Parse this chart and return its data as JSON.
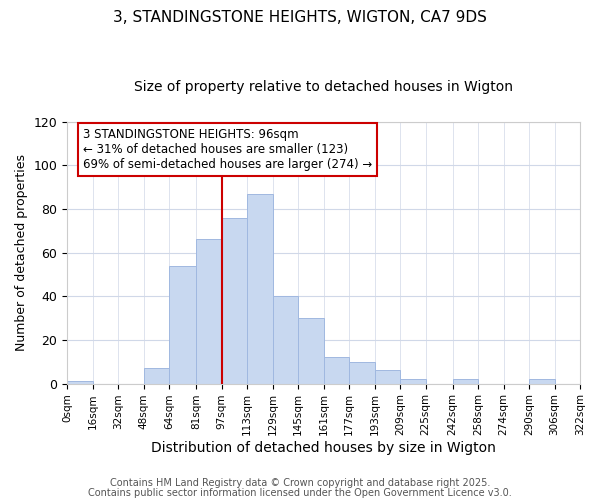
{
  "title": "3, STANDINGSTONE HEIGHTS, WIGTON, CA7 9DS",
  "subtitle": "Size of property relative to detached houses in Wigton",
  "xlabel": "Distribution of detached houses by size in Wigton",
  "ylabel": "Number of detached properties",
  "bin_edges": [
    0,
    16,
    32,
    48,
    64,
    81,
    97,
    113,
    129,
    145,
    161,
    177,
    193,
    209,
    225,
    242,
    258,
    274,
    290,
    306,
    322
  ],
  "bin_labels": [
    "0sqm",
    "16sqm",
    "32sqm",
    "48sqm",
    "64sqm",
    "81sqm",
    "97sqm",
    "113sqm",
    "129sqm",
    "145sqm",
    "161sqm",
    "177sqm",
    "193sqm",
    "209sqm",
    "225sqm",
    "242sqm",
    "258sqm",
    "274sqm",
    "290sqm",
    "306sqm",
    "322sqm"
  ],
  "counts": [
    1,
    0,
    0,
    7,
    54,
    66,
    76,
    87,
    40,
    30,
    12,
    10,
    6,
    2,
    0,
    2,
    0,
    0,
    2,
    0
  ],
  "bar_color": "#c8d8f0",
  "bar_edgecolor": "#a0b8e0",
  "vline_x": 97,
  "vline_color": "#cc0000",
  "annotation_lines": [
    "3 STANDINGSTONE HEIGHTS: 96sqm",
    "← 31% of detached houses are smaller (123)",
    "69% of semi-detached houses are larger (274) →"
  ],
  "annotation_fontsize": 8.5,
  "ylim": [
    0,
    120
  ],
  "yticks": [
    0,
    20,
    40,
    60,
    80,
    100,
    120
  ],
  "footnote1": "Contains HM Land Registry data © Crown copyright and database right 2025.",
  "footnote2": "Contains public sector information licensed under the Open Government Licence v3.0.",
  "background_color": "#ffffff",
  "grid_color": "#d0d8e8",
  "title_fontsize": 11,
  "subtitle_fontsize": 10,
  "xlabel_fontsize": 10,
  "ylabel_fontsize": 9,
  "footnote_fontsize": 7
}
